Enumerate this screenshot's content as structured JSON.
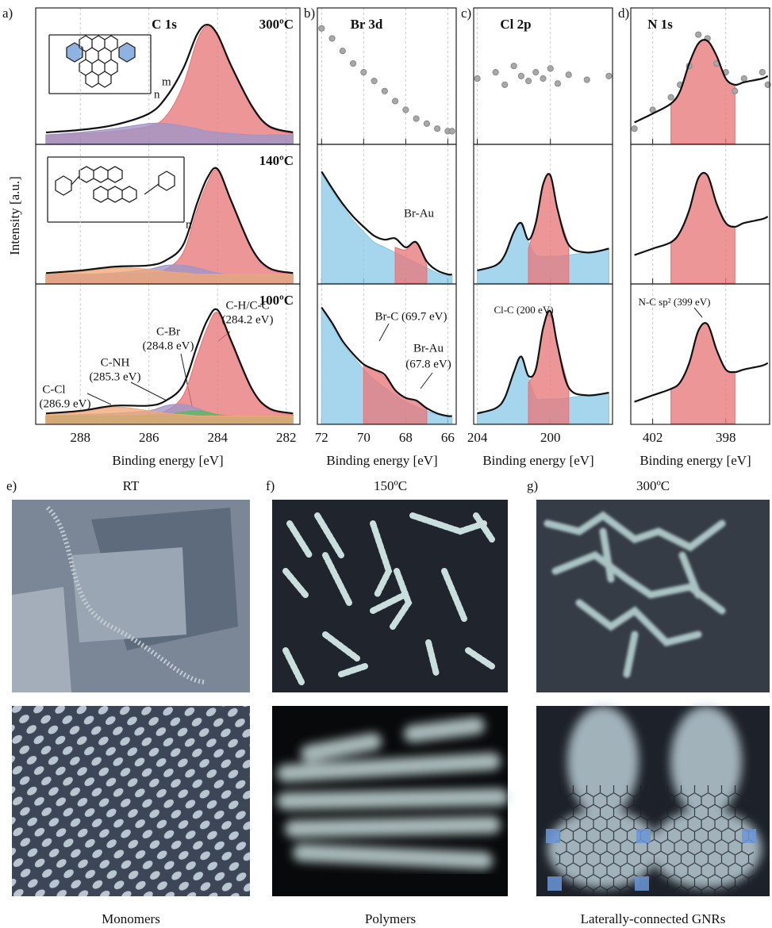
{
  "chart_data": [
    {
      "type": "spectrum",
      "panel_label": "a)",
      "title": "C 1s",
      "x_label": "Binding energy [eV]",
      "y_label": "Intensity [a.u.]",
      "xlim": [
        289.3,
        281.6
      ],
      "xticks": [
        288,
        286,
        284,
        282
      ],
      "ylim": [
        0,
        100
      ],
      "grid": true,
      "x": [
        289,
        288,
        287,
        286,
        285.5,
        285,
        284.6,
        284.3,
        284,
        283.6,
        283,
        282.5,
        281.8
      ],
      "rows": [
        {
          "label": "300ºC",
          "inset_labels": [
            "m",
            "n"
          ],
          "series": [
            {
              "style": "area",
              "color": "#e8797b",
              "values": [
                5,
                6,
                8,
                12,
                20,
                45,
                80,
                92,
                84,
                59,
                27,
                11,
                6
              ]
            },
            {
              "style": "area",
              "color": "#9f95c8",
              "values": [
                5,
                7,
                10,
                14,
                14,
                12,
                10,
                8,
                7,
                6,
                5,
                5,
                5
              ]
            },
            {
              "style": "line",
              "color": "#111111",
              "values": [
                7,
                9,
                13,
                22,
                35,
                58,
                85,
                93,
                85,
                60,
                28,
                12,
                7
              ]
            }
          ]
        },
        {
          "label": "140ºC",
          "inset_labels": [
            "n"
          ],
          "series": [
            {
              "style": "area",
              "color": "#e8797b",
              "values": [
                5,
                5,
                5,
                6,
                9,
                22,
                55,
                76,
                86,
                61,
                24,
                9,
                5
              ]
            },
            {
              "style": "area",
              "color": "#9f95c8",
              "values": [
                5,
                5,
                6,
                9,
                12,
                12,
                10,
                8,
                6,
                5,
                5,
                5,
                5
              ]
            },
            {
              "style": "area",
              "color": "#f0a878",
              "values": [
                5,
                7,
                10,
                9,
                7,
                6,
                5,
                5,
                5,
                5,
                5,
                5,
                5
              ]
            },
            {
              "style": "line",
              "color": "#111111",
              "values": [
                6,
                8,
                11,
                12,
                16,
                28,
                60,
                80,
                87,
                62,
                25,
                10,
                6
              ]
            }
          ]
        },
        {
          "label": "100ºC",
          "annotations": [
            [
              "C-H/C-C",
              "(284.2 eV)"
            ],
            [
              "C-Br",
              "(284.8 eV)"
            ],
            [
              "C-NH",
              "(285.3 eV)"
            ],
            [
              "C-Cl",
              "(286.9 eV)"
            ]
          ],
          "series": [
            {
              "style": "area",
              "color": "#e8797b",
              "values": [
                4,
                4,
                4,
                5,
                8,
                20,
                50,
                72,
                84,
                60,
                24,
                9,
                5
              ]
            },
            {
              "style": "area",
              "color": "#9f95c8",
              "values": [
                4,
                5,
                6,
                8,
                12,
                13,
                10,
                7,
                5,
                4,
                4,
                4,
                4
              ]
            },
            {
              "style": "area",
              "color": "#5cb85c",
              "values": [
                4,
                4,
                4,
                4,
                5,
                7,
                8,
                7,
                5,
                4,
                4,
                4,
                4
              ]
            },
            {
              "style": "area",
              "color": "#f0a878",
              "values": [
                5,
                7,
                11,
                8,
                6,
                5,
                4,
                4,
                4,
                4,
                4,
                4,
                4
              ]
            },
            {
              "style": "line",
              "color": "#111111",
              "values": [
                6,
                8,
                12,
                12,
                16,
                28,
                58,
                78,
                86,
                62,
                25,
                10,
                6
              ]
            }
          ]
        }
      ]
    },
    {
      "type": "spectrum",
      "panel_label": "b)",
      "title": "Br 3d",
      "x_label": "Binding energy [eV]",
      "xlim": [
        72.2,
        65.6
      ],
      "xticks": [
        72,
        70,
        68,
        66
      ],
      "ylim": [
        0,
        100
      ],
      "grid": true,
      "x": [
        72,
        71.5,
        71,
        70.5,
        70,
        69.5,
        69,
        68.5,
        68,
        67.5,
        67,
        66.5,
        66,
        65.8
      ],
      "rows": [
        {
          "series": [
            {
              "style": "points",
              "color": "#a8a8a8",
              "values": [
                90,
                82,
                72,
                62,
                55,
                48,
                40,
                32,
                25,
                18,
                14,
                10,
                8,
                8
              ]
            }
          ]
        },
        {
          "annotations": [
            [
              "Br-Au"
            ]
          ],
          "series": [
            {
              "style": "area",
              "color": "#8ccbe8",
              "values": [
                85,
                70,
                58,
                47,
                38,
                30,
                26,
                22,
                18,
                14,
                10,
                6,
                4,
                4
              ]
            },
            {
              "style": "area",
              "color": "#e8797b",
              "values": [
                null,
                null,
                null,
                null,
                null,
                null,
                null,
                26,
                24,
                30,
                12,
                null,
                null,
                null
              ]
            },
            {
              "style": "line",
              "color": "#111111",
              "values": [
                85,
                72,
                60,
                50,
                42,
                35,
                32,
                33,
                26,
                30,
                15,
                8,
                5,
                5
              ]
            }
          ]
        },
        {
          "annotations": [
            [
              "Br-C (69.7 eV)"
            ],
            [
              "Br-Au",
              "(67.8 eV)"
            ]
          ],
          "series": [
            {
              "style": "area",
              "color": "#8ccbe8",
              "values": [
                88,
                74,
                60,
                50,
                40,
                32,
                26,
                20,
                15,
                11,
                8,
                5,
                3,
                3
              ]
            },
            {
              "style": "area",
              "color": "#e8797b",
              "values": [
                null,
                null,
                null,
                null,
                44,
                40,
                34,
                24,
                18,
                16,
                10,
                null,
                null,
                null
              ]
            },
            {
              "style": "line",
              "color": "#111111",
              "values": [
                88,
                76,
                62,
                52,
                44,
                40,
                36,
                24,
                18,
                16,
                10,
                6,
                4,
                4
              ]
            }
          ]
        }
      ]
    },
    {
      "type": "spectrum",
      "panel_label": "c)",
      "title": "Cl 2p",
      "x_label": "Binding energy [eV]",
      "xlim": [
        204.2,
        196.6
      ],
      "xticks": [
        204,
        200
      ],
      "ylim": [
        0,
        100
      ],
      "grid": true,
      "x": [
        204,
        203,
        202.5,
        202,
        201.6,
        201.2,
        200.8,
        200.4,
        200,
        199.6,
        199,
        198,
        196.8
      ],
      "rows": [
        {
          "series": [
            {
              "style": "points",
              "color": "#a8a8a8",
              "values": [
                50,
                55,
                45,
                60,
                52,
                48,
                55,
                50,
                58,
                46,
                53,
                49,
                52
              ]
            }
          ]
        },
        {
          "series": [
            {
              "style": "area",
              "color": "#8ccbe8",
              "values": [
                8,
                12,
                20,
                38,
                44,
                30,
                20,
                19,
                19,
                19,
                20,
                22,
                25
              ]
            },
            {
              "style": "area",
              "color": "#e8797b",
              "values": [
                null,
                null,
                null,
                null,
                null,
                25,
                45,
                75,
                82,
                55,
                28,
                null,
                null
              ]
            },
            {
              "style": "line",
              "color": "#111111",
              "values": [
                8,
                12,
                20,
                38,
                45,
                32,
                45,
                75,
                82,
                55,
                28,
                22,
                25
              ]
            }
          ]
        },
        {
          "annotations": [
            [
              "Cl-C (200 eV)"
            ]
          ],
          "series": [
            {
              "style": "area",
              "color": "#8ccbe8",
              "values": [
                6,
                10,
                18,
                38,
                50,
                34,
                18,
                17,
                17,
                17,
                18,
                20,
                22
              ]
            },
            {
              "style": "area",
              "color": "#e8797b",
              "values": [
                null,
                null,
                null,
                null,
                null,
                30,
                40,
                72,
                85,
                58,
                26,
                null,
                null
              ]
            },
            {
              "style": "line",
              "color": "#111111",
              "values": [
                6,
                10,
                18,
                38,
                50,
                35,
                40,
                72,
                85,
                58,
                26,
                20,
                22
              ]
            }
          ]
        }
      ]
    },
    {
      "type": "spectrum",
      "panel_label": "d)",
      "title": "N 1s",
      "x_label": "Binding energy [eV]",
      "xlim": [
        403.2,
        395.6
      ],
      "xticks": [
        402,
        398
      ],
      "ylim": [
        0,
        100
      ],
      "grid": true,
      "x": [
        403,
        402,
        401,
        400.5,
        400,
        399.5,
        399,
        398.5,
        398,
        397.5,
        397,
        396,
        395.7
      ],
      "rows": [
        {
          "series": [
            {
              "style": "area",
              "color": "#e8797b",
              "values": [
                null,
                null,
                30,
                40,
                62,
                78,
                80,
                68,
                50,
                45,
                null,
                null,
                null
              ]
            },
            {
              "style": "points",
              "color": "#a8a8a8",
              "values": [
                10,
                25,
                35,
                45,
                60,
                85,
                82,
                62,
                55,
                40,
                50,
                55,
                45
              ]
            },
            {
              "style": "line",
              "color": "#111111",
              "values": [
                15,
                22,
                30,
                40,
                62,
                78,
                80,
                68,
                50,
                45,
                47,
                50,
                52
              ]
            }
          ]
        },
        {
          "series": [
            {
              "style": "area",
              "color": "#e8797b",
              "values": [
                null,
                null,
                30,
                38,
                55,
                80,
                82,
                60,
                45,
                42,
                null,
                null,
                null
              ]
            },
            {
              "style": "line",
              "color": "#111111",
              "values": [
                20,
                25,
                30,
                38,
                55,
                80,
                82,
                60,
                45,
                42,
                45,
                48,
                50
              ]
            }
          ]
        },
        {
          "annotations": [
            [
              "N-C sp² (399 eV)"
            ]
          ],
          "series": [
            {
              "style": "area",
              "color": "#e8797b",
              "values": [
                null,
                null,
                25,
                30,
                45,
                70,
                75,
                55,
                40,
                38,
                null,
                null,
                null
              ]
            },
            {
              "style": "line",
              "color": "#111111",
              "values": [
                15,
                20,
                25,
                30,
                45,
                70,
                75,
                55,
                40,
                38,
                40,
                43,
                45
              ]
            }
          ]
        }
      ]
    }
  ],
  "images": {
    "panels": [
      {
        "label": "e)",
        "title": "RT",
        "caption": "Monomers"
      },
      {
        "label": "f)",
        "title": "150ºC",
        "caption": "Polymers"
      },
      {
        "label": "g)",
        "title": "300ºC",
        "caption": "Laterally-connected GNRs"
      }
    ]
  }
}
